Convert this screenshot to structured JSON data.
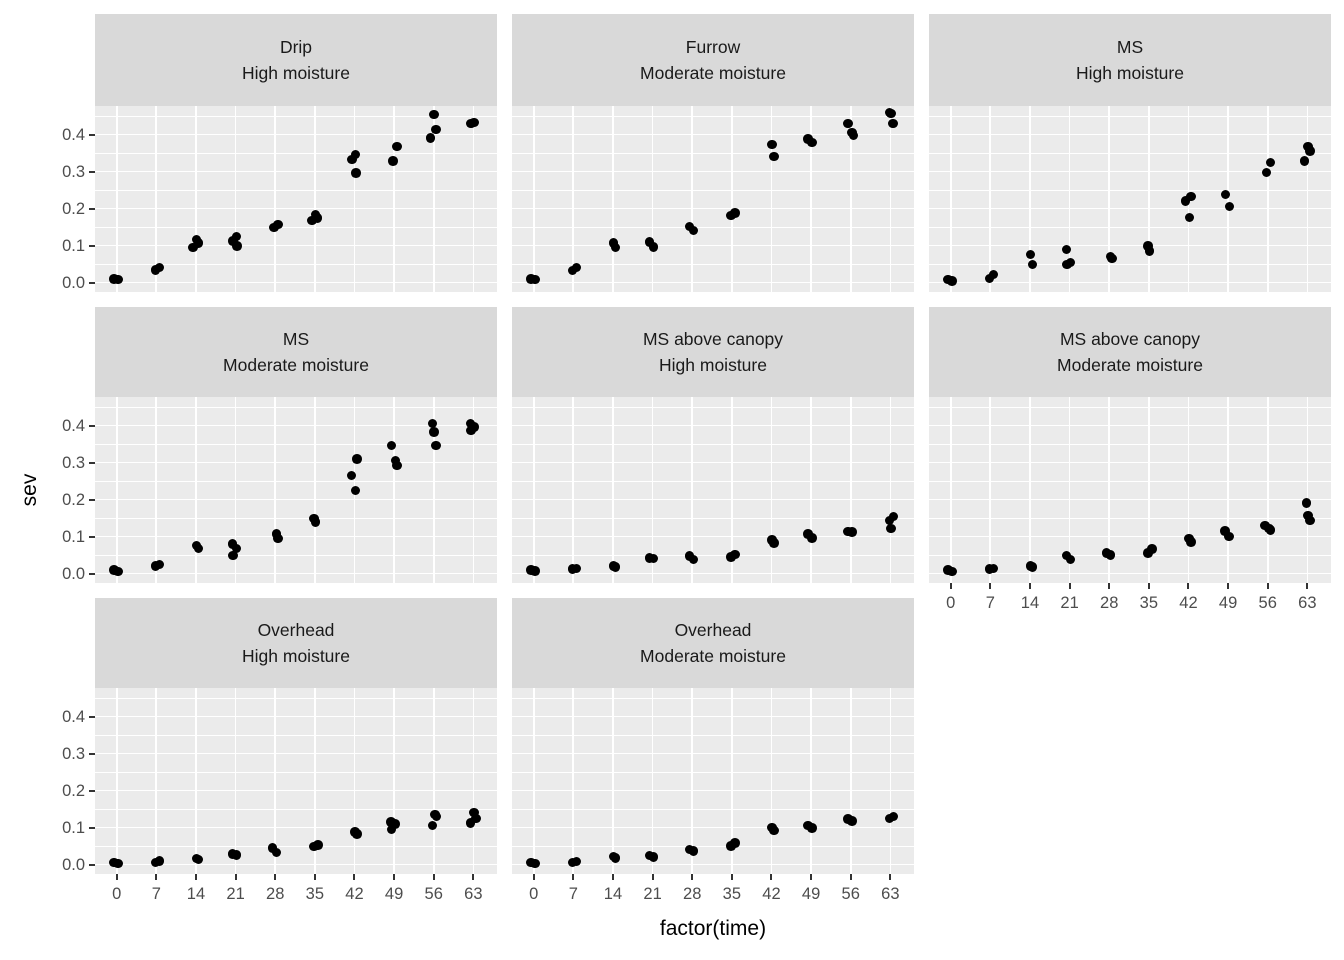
{
  "chart_data": {
    "type": "scatter",
    "title": "",
    "xlabel": "factor(time)",
    "ylabel": "sev",
    "x_categories": [
      "0",
      "7",
      "14",
      "21",
      "28",
      "35",
      "42",
      "49",
      "56",
      "63"
    ],
    "y_tick_labels": [
      "0.0",
      "0.1",
      "0.2",
      "0.3",
      "0.4"
    ],
    "y_tick_values": [
      0.0,
      0.1,
      0.2,
      0.3,
      0.4
    ],
    "ylim": [
      -0.024,
      0.478
    ],
    "grid": "white major and minor horizontal lines (0.05 steps), white vertical lines at each time category, on gray panel",
    "legend": "none",
    "point_style": "black jittered points, 2-3 replicates per time",
    "facets": [
      {
        "row": 1,
        "col": 1,
        "irrigation": "Drip",
        "moisture": "High moisture",
        "points": [
          [
            0,
            0.01
          ],
          [
            0,
            0.008
          ],
          [
            7,
            0.04
          ],
          [
            7,
            0.034
          ],
          [
            14,
            0.116
          ],
          [
            14,
            0.107
          ],
          [
            14,
            0.094
          ],
          [
            21,
            0.124
          ],
          [
            21,
            0.112
          ],
          [
            21,
            0.098
          ],
          [
            28,
            0.157
          ],
          [
            28,
            0.148
          ],
          [
            35,
            0.184
          ],
          [
            35,
            0.175
          ],
          [
            35,
            0.168
          ],
          [
            42,
            0.346
          ],
          [
            42,
            0.332
          ],
          [
            42,
            0.296
          ],
          [
            49,
            0.368
          ],
          [
            49,
            0.328
          ],
          [
            56,
            0.454
          ],
          [
            56,
            0.414
          ],
          [
            56,
            0.391
          ],
          [
            63,
            0.432
          ],
          [
            63,
            0.43
          ]
        ]
      },
      {
        "row": 1,
        "col": 2,
        "irrigation": "Furrow",
        "moisture": "Moderate moisture",
        "points": [
          [
            0,
            0.01
          ],
          [
            0,
            0.008
          ],
          [
            7,
            0.04
          ],
          [
            7,
            0.033
          ],
          [
            14,
            0.107
          ],
          [
            14,
            0.094
          ],
          [
            21,
            0.109
          ],
          [
            21,
            0.096
          ],
          [
            28,
            0.152
          ],
          [
            28,
            0.141
          ],
          [
            35,
            0.188
          ],
          [
            35,
            0.181
          ],
          [
            42,
            0.373
          ],
          [
            42,
            0.34
          ],
          [
            49,
            0.388
          ],
          [
            49,
            0.379
          ],
          [
            56,
            0.43
          ],
          [
            56,
            0.406
          ],
          [
            56,
            0.397
          ],
          [
            63,
            0.46
          ],
          [
            63,
            0.457
          ],
          [
            63,
            0.43
          ]
        ]
      },
      {
        "row": 1,
        "col": 3,
        "irrigation": "MS",
        "moisture": "High moisture",
        "points": [
          [
            0,
            0.008
          ],
          [
            0,
            0.004
          ],
          [
            7,
            0.022
          ],
          [
            7,
            0.011
          ],
          [
            14,
            0.076
          ],
          [
            14,
            0.048
          ],
          [
            21,
            0.089
          ],
          [
            21,
            0.054
          ],
          [
            21,
            0.049
          ],
          [
            28,
            0.07
          ],
          [
            28,
            0.065
          ],
          [
            35,
            0.098
          ],
          [
            35,
            0.085
          ],
          [
            42,
            0.233
          ],
          [
            42,
            0.22
          ],
          [
            42,
            0.176
          ],
          [
            49,
            0.238
          ],
          [
            49,
            0.206
          ],
          [
            56,
            0.324
          ],
          [
            56,
            0.297
          ],
          [
            63,
            0.368
          ],
          [
            63,
            0.355
          ],
          [
            63,
            0.328
          ]
        ]
      },
      {
        "row": 2,
        "col": 1,
        "irrigation": "MS",
        "moisture": "Moderate moisture",
        "points": [
          [
            0,
            0.01
          ],
          [
            0,
            0.006
          ],
          [
            7,
            0.025
          ],
          [
            7,
            0.02
          ],
          [
            14,
            0.076
          ],
          [
            14,
            0.067
          ],
          [
            21,
            0.08
          ],
          [
            21,
            0.067
          ],
          [
            21,
            0.049
          ],
          [
            28,
            0.107
          ],
          [
            28,
            0.094
          ],
          [
            35,
            0.148
          ],
          [
            35,
            0.139
          ],
          [
            42,
            0.31
          ],
          [
            42,
            0.265
          ],
          [
            42,
            0.225
          ],
          [
            49,
            0.346
          ],
          [
            49,
            0.305
          ],
          [
            49,
            0.292
          ],
          [
            56,
            0.405
          ],
          [
            56,
            0.382
          ],
          [
            56,
            0.346
          ],
          [
            63,
            0.405
          ],
          [
            63,
            0.396
          ],
          [
            63,
            0.387
          ]
        ]
      },
      {
        "row": 2,
        "col": 2,
        "irrigation": "MS above canopy",
        "moisture": "High moisture",
        "points": [
          [
            0,
            0.01
          ],
          [
            0,
            0.007
          ],
          [
            7,
            0.014
          ],
          [
            7,
            0.012
          ],
          [
            14,
            0.02
          ],
          [
            14,
            0.017
          ],
          [
            21,
            0.042
          ],
          [
            21,
            0.04
          ],
          [
            28,
            0.047
          ],
          [
            28,
            0.038
          ],
          [
            35,
            0.052
          ],
          [
            35,
            0.045
          ],
          [
            42,
            0.09
          ],
          [
            42,
            0.082
          ],
          [
            49,
            0.107
          ],
          [
            49,
            0.096
          ],
          [
            56,
            0.113
          ],
          [
            56,
            0.112
          ],
          [
            63,
            0.154
          ],
          [
            63,
            0.143
          ],
          [
            63,
            0.121
          ]
        ]
      },
      {
        "row": 2,
        "col": 3,
        "irrigation": "MS above canopy",
        "moisture": "Moderate moisture",
        "points": [
          [
            0,
            0.01
          ],
          [
            0,
            0.006
          ],
          [
            7,
            0.014
          ],
          [
            7,
            0.012
          ],
          [
            14,
            0.02
          ],
          [
            14,
            0.018
          ],
          [
            21,
            0.048
          ],
          [
            21,
            0.038
          ],
          [
            28,
            0.055
          ],
          [
            28,
            0.05
          ],
          [
            35,
            0.066
          ],
          [
            35,
            0.055
          ],
          [
            42,
            0.095
          ],
          [
            42,
            0.085
          ],
          [
            49,
            0.115
          ],
          [
            49,
            0.1
          ],
          [
            56,
            0.13
          ],
          [
            56,
            0.122
          ],
          [
            56,
            0.118
          ],
          [
            63,
            0.19
          ],
          [
            63,
            0.157
          ],
          [
            63,
            0.143
          ]
        ]
      },
      {
        "row": 3,
        "col": 1,
        "irrigation": "Overhead",
        "moisture": "High moisture",
        "points": [
          [
            0,
            0.006
          ],
          [
            0,
            0.003
          ],
          [
            7,
            0.009
          ],
          [
            7,
            0.005
          ],
          [
            14,
            0.016
          ],
          [
            14,
            0.014
          ],
          [
            21,
            0.029
          ],
          [
            21,
            0.026
          ],
          [
            28,
            0.045
          ],
          [
            28,
            0.033
          ],
          [
            35,
            0.053
          ],
          [
            35,
            0.049
          ],
          [
            42,
            0.088
          ],
          [
            42,
            0.083
          ],
          [
            49,
            0.115
          ],
          [
            49,
            0.11
          ],
          [
            49,
            0.095
          ],
          [
            56,
            0.135
          ],
          [
            56,
            0.13
          ],
          [
            56,
            0.105
          ],
          [
            63,
            0.141
          ],
          [
            63,
            0.125
          ],
          [
            63,
            0.112
          ]
        ]
      },
      {
        "row": 3,
        "col": 2,
        "irrigation": "Overhead",
        "moisture": "Moderate moisture",
        "points": [
          [
            0,
            0.006
          ],
          [
            0,
            0.003
          ],
          [
            7,
            0.008
          ],
          [
            7,
            0.005
          ],
          [
            14,
            0.021
          ],
          [
            14,
            0.018
          ],
          [
            21,
            0.025
          ],
          [
            21,
            0.02
          ],
          [
            28,
            0.04
          ],
          [
            28,
            0.037
          ],
          [
            35,
            0.058
          ],
          [
            35,
            0.05
          ],
          [
            42,
            0.1
          ],
          [
            42,
            0.092
          ],
          [
            49,
            0.105
          ],
          [
            49,
            0.099
          ],
          [
            56,
            0.123
          ],
          [
            56,
            0.118
          ],
          [
            63,
            0.13
          ],
          [
            63,
            0.125
          ]
        ]
      }
    ]
  },
  "style": {
    "panel_bg": "#EBEBEB",
    "strip_bg": "#D9D9D9",
    "grid_color": "#FFFFFF",
    "point_color": "#000000",
    "tick_text_color": "#4D4D4D",
    "tick_mark_color": "#333333",
    "title_color": "#000000",
    "background": "#FFFFFF"
  }
}
